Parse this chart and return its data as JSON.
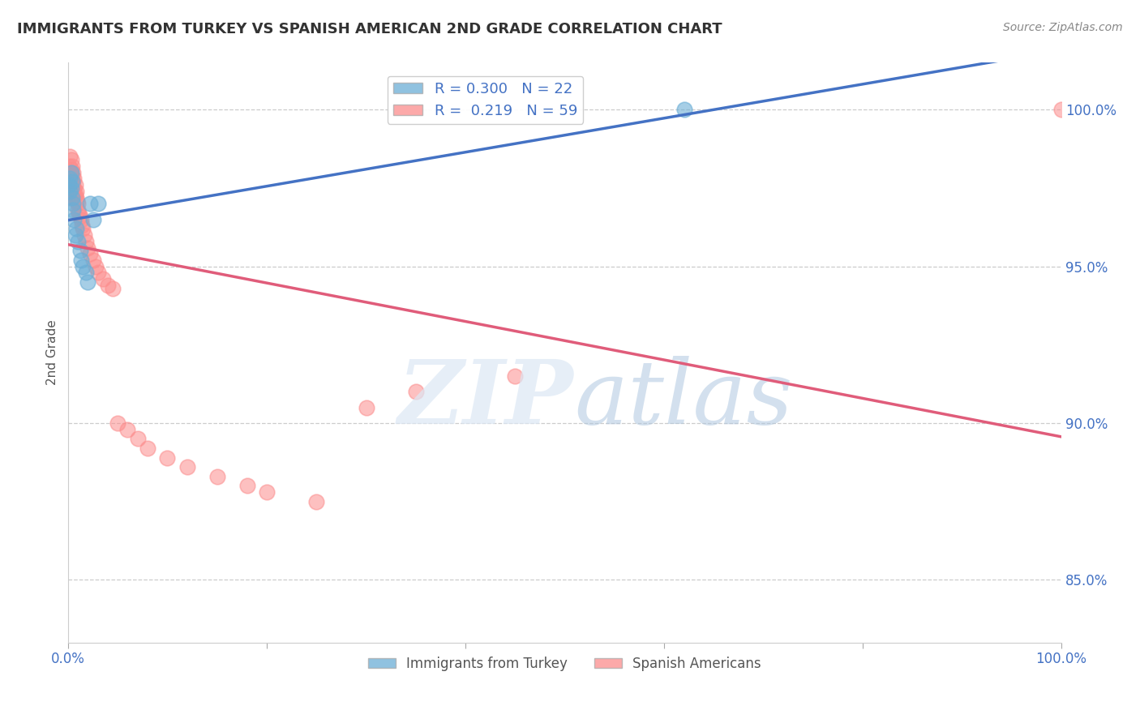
{
  "title": "IMMIGRANTS FROM TURKEY VS SPANISH AMERICAN 2ND GRADE CORRELATION CHART",
  "source": "Source: ZipAtlas.com",
  "ylabel": "2nd Grade",
  "ytick_labels": [
    "100.0%",
    "95.0%",
    "90.0%",
    "85.0%"
  ],
  "ytick_values": [
    1.0,
    0.95,
    0.9,
    0.85
  ],
  "blue_color": "#6baed6",
  "pink_color": "#fc8d8d",
  "blue_line_color": "#4472c4",
  "pink_line_color": "#e05c7a",
  "legend_blue_R": "0.300",
  "legend_blue_N": "22",
  "legend_pink_R": "0.219",
  "legend_pink_N": "59",
  "axis_color": "#4472c4",
  "blue_scatter_x": [
    0.001,
    0.002,
    0.002,
    0.003,
    0.003,
    0.004,
    0.004,
    0.005,
    0.005,
    0.006,
    0.007,
    0.008,
    0.01,
    0.012,
    0.013,
    0.015,
    0.018,
    0.02,
    0.022,
    0.025,
    0.03,
    0.62
  ],
  "blue_scatter_y": [
    0.976,
    0.978,
    0.974,
    0.98,
    0.975,
    0.972,
    0.977,
    0.97,
    0.968,
    0.965,
    0.96,
    0.962,
    0.958,
    0.955,
    0.952,
    0.95,
    0.948,
    0.945,
    0.97,
    0.965,
    0.97,
    1.0
  ],
  "pink_scatter_x": [
    0.001,
    0.001,
    0.001,
    0.001,
    0.002,
    0.002,
    0.002,
    0.002,
    0.003,
    0.003,
    0.003,
    0.003,
    0.004,
    0.004,
    0.004,
    0.004,
    0.005,
    0.005,
    0.005,
    0.005,
    0.006,
    0.006,
    0.006,
    0.007,
    0.007,
    0.008,
    0.008,
    0.009,
    0.01,
    0.01,
    0.011,
    0.012,
    0.013,
    0.014,
    0.015,
    0.016,
    0.018,
    0.02,
    0.022,
    0.025,
    0.028,
    0.03,
    0.035,
    0.04,
    0.045,
    0.05,
    0.06,
    0.07,
    0.08,
    0.1,
    0.12,
    0.15,
    0.18,
    0.2,
    0.25,
    0.3,
    0.35,
    0.45,
    1.0
  ],
  "pink_scatter_y": [
    0.982,
    0.978,
    0.975,
    0.972,
    0.985,
    0.98,
    0.977,
    0.974,
    0.984,
    0.981,
    0.978,
    0.975,
    0.982,
    0.979,
    0.977,
    0.974,
    0.98,
    0.977,
    0.975,
    0.972,
    0.978,
    0.975,
    0.973,
    0.976,
    0.973,
    0.974,
    0.972,
    0.971,
    0.97,
    0.968,
    0.967,
    0.966,
    0.965,
    0.963,
    0.962,
    0.96,
    0.958,
    0.956,
    0.954,
    0.952,
    0.95,
    0.948,
    0.946,
    0.944,
    0.943,
    0.9,
    0.898,
    0.895,
    0.892,
    0.889,
    0.886,
    0.883,
    0.88,
    0.878,
    0.875,
    0.905,
    0.91,
    0.915,
    1.0
  ]
}
